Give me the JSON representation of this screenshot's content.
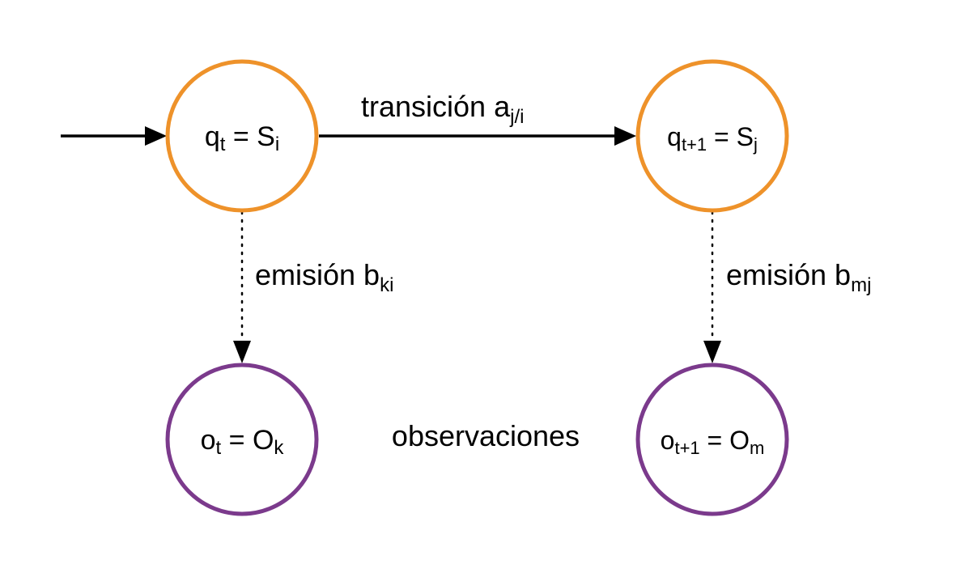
{
  "colors": {
    "state_stroke": "#EE922A",
    "observation_stroke": "#7B3A8C",
    "edge": "#000000",
    "text": "#000000"
  },
  "states": [
    {
      "base": "q",
      "base_sub": "t",
      "eq": " = ",
      "value": "S",
      "value_sub": "i"
    },
    {
      "base": "q",
      "base_sub": "t+1",
      "eq": " = ",
      "value": "S",
      "value_sub": "j"
    }
  ],
  "observations": [
    {
      "base": "o",
      "base_sub": "t",
      "eq": " = ",
      "value": "O",
      "value_sub": "k"
    },
    {
      "base": "o",
      "base_sub": "t+1",
      "eq": " = ",
      "value": "O",
      "value_sub": "m"
    }
  ],
  "transition": {
    "text": "transición a",
    "sub": "j/i"
  },
  "emissions": [
    {
      "text": "emisión b",
      "sub": "ki"
    },
    {
      "text": "emisión b",
      "sub": "mj"
    }
  ],
  "observations_label": "observaciones"
}
